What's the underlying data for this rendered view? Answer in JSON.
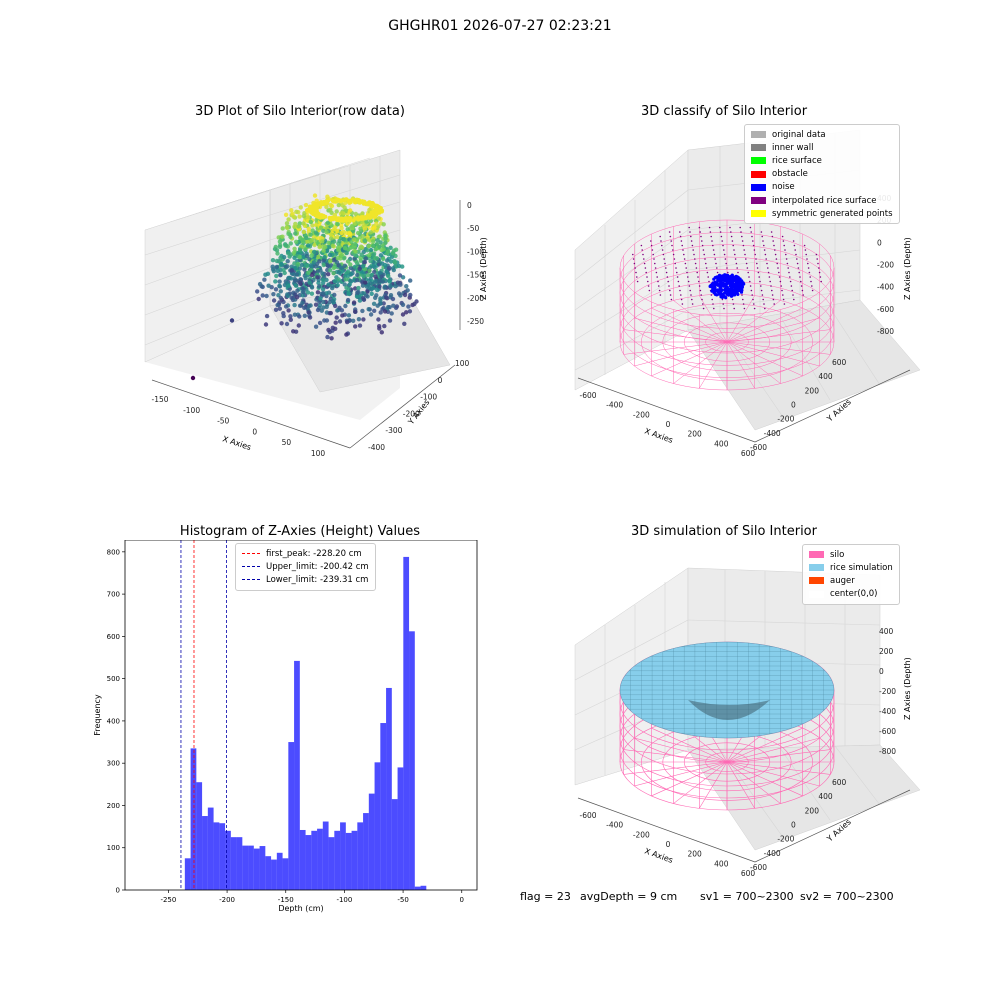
{
  "figure": {
    "title": "GHGHR01 2026-07-27 02:23:21",
    "footer": {
      "flag": "flag = 23",
      "avg_depth": "avgDepth = 9 cm",
      "sv1": "sv1 = 700~2300",
      "sv2": "sv2 = 700~2300"
    }
  },
  "chart_data": [
    {
      "type": "scatter",
      "projection": "3d",
      "title": "3D Plot of Silo Interior(row data)",
      "xlabel": "X Axies",
      "ylabel": "Y Axies",
      "zlabel": "Z Axies (Depth)",
      "x_ticks": [
        "-150",
        "-100",
        "-50",
        "0",
        "50",
        "100"
      ],
      "y_ticks": [
        "100",
        "0",
        "-100",
        "-200",
        "-300",
        "-400"
      ],
      "z_ticks": [
        "0",
        "-50",
        "-100",
        "-150",
        "-200",
        "-250"
      ],
      "colormap": "viridis",
      "outlier_points": [
        {
          "x": -110,
          "y": 0,
          "z": -250
        },
        {
          "x": -95,
          "y": 20,
          "z": -200
        },
        {
          "x": -70,
          "y": 40,
          "z": -160
        }
      ]
    },
    {
      "type": "scatter",
      "projection": "3d",
      "title": "3D classify of Silo Interior",
      "xlabel": "X Axies",
      "ylabel": "Y Axies",
      "zlabel": "Z Axies (Depth)",
      "x_ticks": [
        "-600",
        "-400",
        "-200",
        "0",
        "200",
        "400",
        "600"
      ],
      "y_ticks": [
        "600",
        "400",
        "200",
        "0",
        "-200",
        "-400",
        "-600"
      ],
      "z_ticks": [
        "400",
        "200",
        "0",
        "-200",
        "-400",
        "-600",
        "-800"
      ],
      "legend_position": "top-right",
      "legend": [
        {
          "label": "original data",
          "color": "#b0b0b0"
        },
        {
          "label": "inner wall",
          "color": "#808080"
        },
        {
          "label": "rice surface",
          "color": "#00ff00"
        },
        {
          "label": "obstacle",
          "color": "#ff0000"
        },
        {
          "label": "noise",
          "color": "#0000ff"
        },
        {
          "label": "interpolated rice surface",
          "color": "#800080"
        },
        {
          "label": "symmetric generated points",
          "color": "#ffff00"
        }
      ]
    },
    {
      "type": "bar",
      "subtype": "histogram",
      "title": "Histogram of Z-Axies (Height) Values",
      "xlabel": "Depth (cm)",
      "ylabel": "Frequency",
      "xlim": [
        -287,
        13
      ],
      "ylim": [
        0,
        828
      ],
      "x_ticks": [
        -250,
        -200,
        -150,
        -100,
        -50,
        0
      ],
      "y_ticks": [
        0,
        100,
        200,
        300,
        400,
        500,
        600,
        700,
        800
      ],
      "bin_start": -236,
      "bin_width": 4.9,
      "bar_color": "#0000ff",
      "values": [
        75,
        335,
        255,
        175,
        195,
        160,
        158,
        140,
        125,
        125,
        105,
        105,
        98,
        104,
        80,
        72,
        88,
        75,
        350,
        542,
        142,
        130,
        140,
        145,
        162,
        125,
        140,
        160,
        135,
        140,
        160,
        182,
        228,
        302,
        395,
        478,
        215,
        290,
        788,
        612,
        8,
        10
      ],
      "vlines": [
        {
          "label": "first_peak: -228.20 cm",
          "x": -228.2,
          "color": "#ff0000"
        },
        {
          "label": "Upper_limit: -200.42 cm",
          "x": -200.42,
          "color": "#0000aa"
        },
        {
          "label": "Lower_limit: -239.31 cm",
          "x": -239.31,
          "color": "#0000aa"
        }
      ],
      "legend_position": "top-left"
    },
    {
      "type": "surface",
      "projection": "3d",
      "title": "3D simulation of Silo Interior",
      "xlabel": "X Axies",
      "ylabel": "Y Axies",
      "zlabel": "Z Axies (Depth)",
      "x_ticks": [
        "-600",
        "-400",
        "-200",
        "0",
        "200",
        "400",
        "600"
      ],
      "y_ticks": [
        "600",
        "400",
        "200",
        "0",
        "-200",
        "-400",
        "-600"
      ],
      "z_ticks": [
        "400",
        "200",
        "0",
        "-200",
        "-400",
        "-600",
        "-800"
      ],
      "legend_position": "top-right",
      "legend": [
        {
          "label": "silo",
          "color": "#ff69b4"
        },
        {
          "label": "rice simulation",
          "color": "#87ceeb"
        },
        {
          "label": "auger",
          "color": "#ff4500"
        },
        {
          "label": "center(0,0)",
          "color": "#ffffff"
        }
      ]
    }
  ]
}
